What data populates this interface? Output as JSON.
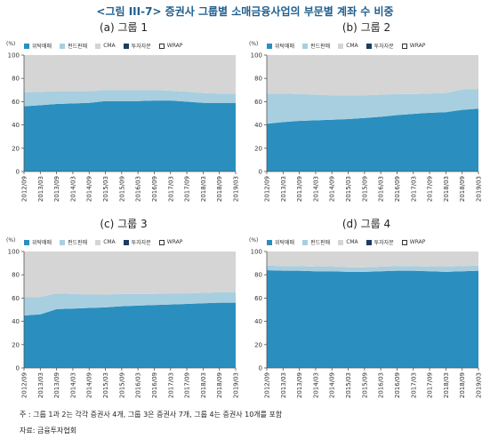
{
  "figure_title": "<그림 III-7> 증권사 그룹별 소매금융사업의 부문별 계좌 수 비중",
  "note": "주 : 그룹 1과 2는 각각 증권사 4개, 그룹 3은 증권사 7개, 그룹 4는 증권사 10개를 포함",
  "source": "자료: 금융투자협회",
  "colors": {
    "위탁매매": "#2a8fbf",
    "펀드판매": "#a8cfe0",
    "CMA": "#d5d5d5",
    "투자자문": "#1c3d62",
    "WRAP": "#ffffff"
  },
  "chart_data": [
    {
      "type": "area",
      "stacked": true,
      "title": "(a) 그룹 1",
      "unit": "(%)",
      "x": [
        "2012/09",
        "2013/03",
        "2013/09",
        "2014/03",
        "2014/09",
        "2015/03",
        "2015/09",
        "2016/03",
        "2016/09",
        "2017/03",
        "2017/09",
        "2018/03",
        "2018/09",
        "2019/03"
      ],
      "ylim": [
        0,
        100
      ],
      "yticks": [
        0,
        20,
        40,
        60,
        80,
        100
      ],
      "series": [
        {
          "name": "위탁매매",
          "values": [
            56,
            57,
            58,
            58.5,
            59,
            60.5,
            60.5,
            60.5,
            61,
            61,
            60,
            59,
            59,
            59
          ]
        },
        {
          "name": "펀드판매",
          "values": [
            12,
            11.5,
            11,
            10.5,
            10,
            9.5,
            9.5,
            9.5,
            9,
            8.5,
            8.5,
            8.5,
            8,
            8
          ]
        },
        {
          "name": "CMA",
          "values": [
            32,
            31.5,
            31,
            31,
            31,
            30,
            30,
            30,
            30,
            30.5,
            31.5,
            32.5,
            33,
            33
          ]
        },
        {
          "name": "투자자문",
          "values": [
            0,
            0,
            0,
            0,
            0,
            0,
            0,
            0,
            0,
            0,
            0,
            0,
            0,
            0
          ]
        },
        {
          "name": "WRAP",
          "values": [
            0,
            0,
            0,
            0,
            0,
            0,
            0,
            0,
            0,
            0,
            0,
            0,
            0,
            0
          ]
        }
      ]
    },
    {
      "type": "area",
      "stacked": true,
      "title": "(b) 그룹 2",
      "unit": "(%)",
      "x": [
        "2012/09",
        "2013/03",
        "2013/09",
        "2014/03",
        "2014/09",
        "2015/03",
        "2015/09",
        "2016/03",
        "2016/09",
        "2017/03",
        "2017/09",
        "2018/03",
        "2018/09",
        "2019/03"
      ],
      "ylim": [
        0,
        100
      ],
      "yticks": [
        0,
        20,
        40,
        60,
        80,
        100
      ],
      "series": [
        {
          "name": "위탁매매",
          "values": [
            41,
            42.5,
            43.5,
            44,
            44.5,
            45,
            46,
            47,
            48.5,
            49.5,
            50.5,
            51,
            53,
            54
          ]
        },
        {
          "name": "펀드판매",
          "values": [
            26,
            24.5,
            23,
            22,
            21,
            20.5,
            19.5,
            19,
            18,
            17,
            16.5,
            16.5,
            17.5,
            17
          ]
        },
        {
          "name": "CMA",
          "values": [
            33,
            33,
            33.5,
            34,
            34.5,
            34.5,
            34.5,
            34,
            33.5,
            33.5,
            33,
            32.5,
            29.5,
            29
          ]
        },
        {
          "name": "투자자문",
          "values": [
            0,
            0,
            0,
            0,
            0,
            0,
            0,
            0,
            0,
            0,
            0,
            0,
            0,
            0
          ]
        },
        {
          "name": "WRAP",
          "values": [
            0,
            0,
            0,
            0,
            0,
            0,
            0,
            0,
            0,
            0,
            0,
            0,
            0,
            0
          ]
        }
      ]
    },
    {
      "type": "area",
      "stacked": true,
      "title": "(c) 그룹 3",
      "unit": "(%)",
      "x": [
        "2012/09",
        "2013/03",
        "2013/09",
        "2014/03",
        "2014/09",
        "2015/03",
        "2015/09",
        "2016/03",
        "2016/09",
        "2017/03",
        "2017/09",
        "2018/03",
        "2018/09",
        "2019/03"
      ],
      "ylim": [
        0,
        100
      ],
      "yticks": [
        0,
        20,
        40,
        60,
        80,
        100
      ],
      "series": [
        {
          "name": "위탁매매",
          "values": [
            45,
            46,
            50.5,
            51,
            51.5,
            52,
            53,
            53.5,
            54,
            54.5,
            55,
            55.5,
            56,
            56
          ]
        },
        {
          "name": "펀드판매",
          "values": [
            16,
            15,
            13.5,
            12.5,
            11.5,
            11,
            10.5,
            10,
            9.5,
            9.5,
            9,
            9,
            9,
            9
          ]
        },
        {
          "name": "CMA",
          "values": [
            39,
            39,
            36,
            36.5,
            37,
            37,
            36.5,
            36.5,
            36.5,
            36,
            36,
            35.5,
            35,
            35
          ]
        },
        {
          "name": "투자자문",
          "values": [
            0,
            0,
            0,
            0,
            0,
            0,
            0,
            0,
            0,
            0,
            0,
            0,
            0,
            0
          ]
        },
        {
          "name": "WRAP",
          "values": [
            0,
            0,
            0,
            0,
            0,
            0,
            0,
            0,
            0,
            0,
            0,
            0,
            0,
            0
          ]
        }
      ]
    },
    {
      "type": "area",
      "stacked": true,
      "title": "(d) 그룹 4",
      "unit": "(%)",
      "x": [
        "2012/09",
        "2013/03",
        "2013/09",
        "2014/03",
        "2014/09",
        "2015/03",
        "2015/09",
        "2016/03",
        "2016/09",
        "2017/03",
        "2017/09",
        "2018/03",
        "2018/09",
        "2019/03"
      ],
      "ylim": [
        0,
        100
      ],
      "yticks": [
        0,
        20,
        40,
        60,
        80,
        100
      ],
      "series": [
        {
          "name": "위탁매매",
          "values": [
            84,
            83.5,
            83.5,
            83,
            83,
            82.5,
            82.5,
            83,
            83.5,
            83.5,
            83,
            82.5,
            83,
            83.5
          ]
        },
        {
          "name": "펀드판매",
          "values": [
            4,
            4,
            4,
            4,
            4,
            4,
            4,
            4,
            4,
            4,
            4,
            4.5,
            4.5,
            4.5
          ]
        },
        {
          "name": "CMA",
          "values": [
            12,
            12.5,
            12.5,
            13,
            13,
            13.5,
            13.5,
            13,
            12.5,
            12.5,
            13,
            13,
            12.5,
            12
          ]
        },
        {
          "name": "투자자문",
          "values": [
            0,
            0,
            0,
            0,
            0,
            0,
            0,
            0,
            0,
            0,
            0,
            0,
            0,
            0
          ]
        },
        {
          "name": "WRAP",
          "values": [
            0,
            0,
            0,
            0,
            0,
            0,
            0,
            0,
            0,
            0,
            0,
            0,
            0,
            0
          ]
        }
      ]
    }
  ]
}
